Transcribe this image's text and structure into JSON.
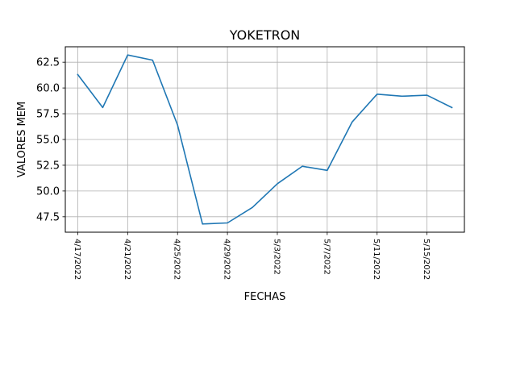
{
  "chart_data": {
    "type": "line",
    "title": "YOKETRON",
    "xlabel": "FECHAS",
    "ylabel": "VALORES MEM",
    "x": [
      "4/17/2022",
      "4/19/2022",
      "4/21/2022",
      "4/23/2022",
      "4/25/2022",
      "4/27/2022",
      "4/29/2022",
      "5/1/2022",
      "5/3/2022",
      "5/5/2022",
      "5/7/2022",
      "5/9/2022",
      "5/11/2022",
      "5/13/2022",
      "5/15/2022",
      "5/17/2022"
    ],
    "series": [
      {
        "values": [
          61.3,
          58.1,
          63.2,
          62.7,
          56.4,
          46.8,
          46.9,
          48.4,
          50.7,
          52.4,
          52.0,
          56.7,
          59.4,
          59.2,
          59.3,
          58.1
        ],
        "color": "#1f77b4"
      }
    ],
    "xticks": [
      "4/17/2022",
      "4/21/2022",
      "4/25/2022",
      "4/29/2022",
      "5/3/2022",
      "5/7/2022",
      "5/11/2022",
      "5/15/2022"
    ],
    "yticks": [
      47.5,
      50.0,
      52.5,
      55.0,
      57.5,
      60.0,
      62.5
    ],
    "ytick_labels": [
      "47.5",
      "50.0",
      "52.5",
      "55.0",
      "57.5",
      "60.0",
      "62.5"
    ],
    "xlim": [
      "4/16/2022",
      "5/18/2022"
    ],
    "ylim": [
      46.0,
      64.0
    ],
    "grid": true,
    "legend": "none"
  }
}
